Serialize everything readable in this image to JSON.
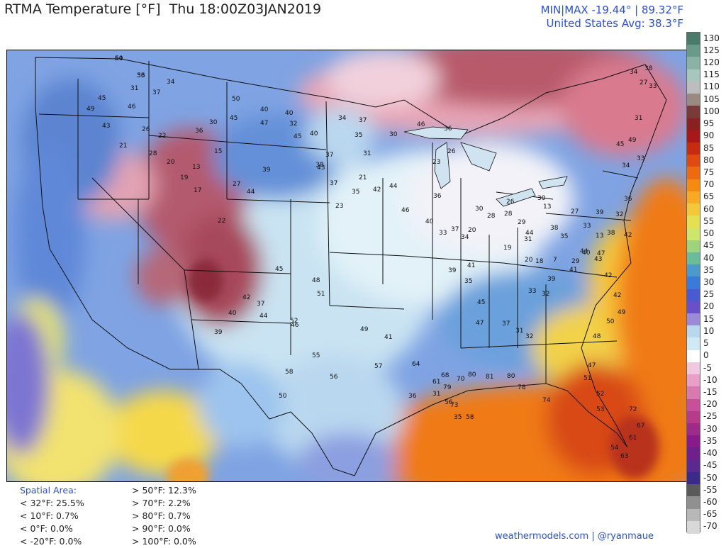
{
  "header": {
    "title": "RTMA Temperature [°F]  Thu 18:00Z03JAN2019",
    "minmax": "MIN|MAX -19.44°  |  89.32°F",
    "average": "United States Avg: 38.3°F"
  },
  "colorbar": {
    "ticks": [
      "130",
      "125",
      "120",
      "115",
      "110",
      "105",
      "100",
      "95",
      "90",
      "85",
      "80",
      "75",
      "70",
      "65",
      "60",
      "55",
      "50",
      "45",
      "40",
      "35",
      "30",
      "25",
      "20",
      "15",
      "10",
      "5",
      "0",
      "-5",
      "-10",
      "-15",
      "-20",
      "-25",
      "-30",
      "-35",
      "-40",
      "-45",
      "-50",
      "-55",
      "-60",
      "-65",
      "-70"
    ],
    "colors": [
      "#4a7a6a",
      "#6a9a8a",
      "#8ab3a5",
      "#a8c7bc",
      "#bdbdbd",
      "#9a8a82",
      "#7a3a3a",
      "#8a2020",
      "#a81818",
      "#c82a10",
      "#de4a10",
      "#ee6a10",
      "#f58a10",
      "#f9aa20",
      "#f5c83a",
      "#e5e050",
      "#cde76a",
      "#9dd37a",
      "#6cbb9a",
      "#4a9bcc",
      "#3a7ad8",
      "#4a5ad0",
      "#6a50c8",
      "#9a8ad8",
      "#b8d8ee",
      "#d0eaf5",
      "#ffffff",
      "#f0c8e0",
      "#e8a0c8",
      "#d87ab0",
      "#c8509a",
      "#b83a8a",
      "#a02a8a",
      "#8a1a8a",
      "#70208a",
      "#5a2a90",
      "#3a2a8a",
      "#5a5a5a",
      "#909090",
      "#b8b8b8",
      "#d8d8d8"
    ]
  },
  "spatial_area": {
    "heading": "Spatial Area:",
    "left": [
      "< 32°F: 25.5%",
      "< 10°F: 0.7%",
      "< 0°F: 0.0%",
      "< -20°F: 0.0%"
    ],
    "right": [
      "> 50°F: 12.3%",
      "> 70°F: 2.2%",
      "> 80°F: 0.7%",
      "> 90°F: 0.0%",
      "> 100°F: 0.0%"
    ]
  },
  "credit": "weathermodels.com | @ryanmaue",
  "station_values": [
    "50",
    "33",
    "31",
    "37",
    "34",
    "45",
    "49",
    "46",
    "43",
    "26",
    "22",
    "36",
    "30",
    "45",
    "50",
    "40",
    "40",
    "47",
    "34",
    "37",
    "35",
    "32",
    "21",
    "28",
    "20",
    "13",
    "19",
    "17",
    "15",
    "45",
    "40",
    "37",
    "38",
    "31",
    "23",
    "30",
    "21",
    "46",
    "36",
    "26",
    "23",
    "27",
    "22",
    "44",
    "39",
    "43",
    "37",
    "35",
    "42",
    "44",
    "46",
    "36",
    "40",
    "33",
    "37",
    "34",
    "20",
    "30",
    "28",
    "26",
    "30",
    "29",
    "31",
    "19",
    "18",
    "20",
    "7",
    "29",
    "44",
    "47",
    "35",
    "33",
    "38",
    "39",
    "36",
    "32",
    "34",
    "33",
    "31",
    "33",
    "27",
    "38",
    "34",
    "49",
    "45",
    "42",
    "13",
    "27",
    "13",
    "38",
    "44",
    "28",
    "41",
    "39",
    "35",
    "45",
    "47",
    "37",
    "31",
    "32",
    "33",
    "32",
    "39",
    "41",
    "40",
    "43",
    "42",
    "42",
    "49",
    "50",
    "48",
    "47",
    "51",
    "52",
    "53",
    "54",
    "61",
    "67",
    "72",
    "74",
    "78",
    "80",
    "81",
    "80",
    "79",
    "73",
    "70",
    "68",
    "64",
    "57",
    "56",
    "55",
    "58",
    "50",
    "46",
    "44",
    "42",
    "40",
    "39",
    "37",
    "45",
    "48",
    "51",
    "52",
    "49",
    "41",
    "36",
    "31",
    "35",
    "58",
    "56",
    "61",
    "63",
    "64",
    "56"
  ]
}
